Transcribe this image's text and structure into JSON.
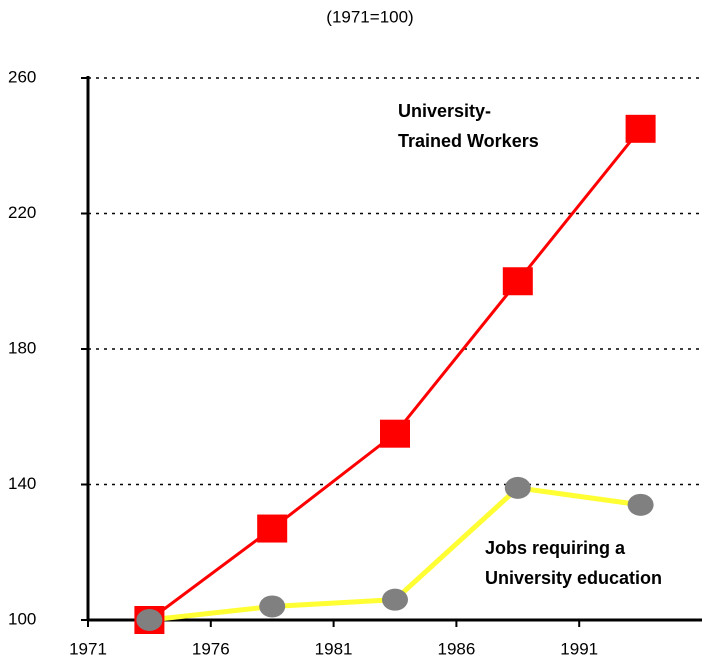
{
  "chart_data": {
    "type": "line",
    "subtitle": "(1971=100)",
    "x": [
      1973.5,
      1978.5,
      1983.5,
      1988.5,
      1993.5
    ],
    "series": [
      {
        "name": "University-Trained Workers",
        "color": "#ff0000",
        "marker": "square",
        "values": [
          100,
          127,
          155,
          200,
          245
        ]
      },
      {
        "name": "Jobs requiring a University education",
        "color": "#ffff33",
        "marker_color": "#808080",
        "marker": "circle",
        "values": [
          100,
          104,
          106,
          139,
          134
        ]
      }
    ],
    "annotations": [
      [
        "University-",
        "Trained Workers"
      ],
      [
        "Jobs requiring a",
        "University education"
      ]
    ],
    "xlim": [
      1971,
      1996
    ],
    "xticks": [
      1971,
      1976,
      1981,
      1986,
      1991
    ],
    "ylim": [
      100,
      260
    ],
    "yticks": [
      100,
      140,
      180,
      220,
      260
    ],
    "grid": true
  }
}
